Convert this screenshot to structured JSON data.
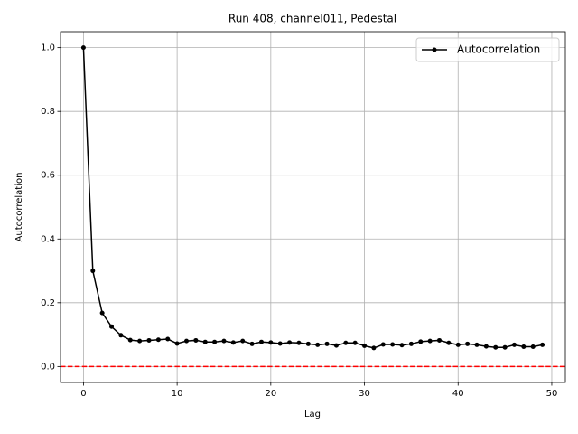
{
  "chart_data": {
    "type": "line",
    "title": "Run 408, channel011, Pedestal",
    "x_label": "Lag",
    "y_label": "Autocorrelation",
    "x": [
      0,
      1,
      2,
      3,
      4,
      5,
      6,
      7,
      8,
      9,
      10,
      11,
      12,
      13,
      14,
      15,
      16,
      17,
      18,
      19,
      20,
      21,
      22,
      23,
      24,
      25,
      26,
      27,
      28,
      29,
      30,
      31,
      32,
      33,
      34,
      35,
      36,
      37,
      38,
      39,
      40,
      41,
      42,
      43,
      44,
      45,
      46,
      47,
      48,
      49
    ],
    "series": [
      {
        "name": "Autocorrelation",
        "color": "#000000",
        "values": [
          1.0,
          0.3,
          0.168,
          0.125,
          0.098,
          0.083,
          0.08,
          0.082,
          0.084,
          0.086,
          0.072,
          0.08,
          0.082,
          0.077,
          0.077,
          0.08,
          0.075,
          0.08,
          0.071,
          0.077,
          0.075,
          0.072,
          0.075,
          0.074,
          0.071,
          0.068,
          0.071,
          0.066,
          0.074,
          0.074,
          0.065,
          0.058,
          0.069,
          0.069,
          0.067,
          0.071,
          0.078,
          0.08,
          0.082,
          0.074,
          0.068,
          0.071,
          0.068,
          0.063,
          0.06,
          0.06,
          0.068,
          0.062,
          0.062,
          0.068
        ]
      }
    ],
    "reference_line": {
      "value": 0,
      "color": "#ff0000"
    },
    "xlim": [
      -2.45,
      51.45
    ],
    "xticks": [
      0,
      10,
      20,
      30,
      40,
      50
    ],
    "ylim": [
      -0.05,
      1.05
    ],
    "yticks": [
      {
        "value": 0,
        "label": "0.0"
      },
      {
        "value": 0.2,
        "label": "0.2"
      },
      {
        "value": 0.4,
        "label": "0.4"
      },
      {
        "value": 0.6,
        "label": "0.6"
      },
      {
        "value": 0.8,
        "label": "0.8"
      },
      {
        "value": 1.0,
        "label": "1.0"
      }
    ],
    "grid": true,
    "legend": "upper right"
  }
}
